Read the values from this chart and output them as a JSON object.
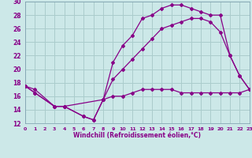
{
  "xlabel": "Windchill (Refroidissement éolien,°C)",
  "background_color": "#cce8e8",
  "grid_color": "#aacccc",
  "line_color": "#880088",
  "spine_color": "#7799aa",
  "xlim": [
    0,
    23
  ],
  "ylim": [
    12,
    30
  ],
  "yticks": [
    12,
    14,
    16,
    18,
    20,
    22,
    24,
    26,
    28,
    30
  ],
  "xticks": [
    0,
    1,
    2,
    3,
    4,
    5,
    6,
    7,
    8,
    9,
    10,
    11,
    12,
    13,
    14,
    15,
    16,
    17,
    18,
    19,
    20,
    21,
    22,
    23
  ],
  "series1_x": [
    0,
    1,
    3,
    4,
    6,
    7,
    8,
    9,
    10,
    11,
    12,
    13,
    14,
    15,
    16,
    17,
    18,
    19,
    20,
    21,
    22,
    23
  ],
  "series1_y": [
    17.5,
    17.0,
    14.5,
    14.5,
    13.0,
    12.5,
    15.5,
    21.0,
    23.5,
    25.0,
    27.5,
    28.0,
    29.0,
    29.5,
    29.5,
    29.0,
    28.5,
    28.0,
    28.0,
    22.0,
    19.0,
    17.0
  ],
  "series2_x": [
    0,
    1,
    3,
    4,
    6,
    7,
    8,
    9,
    10,
    11,
    12,
    13,
    14,
    15,
    16,
    17,
    18,
    19,
    20,
    21,
    22,
    23
  ],
  "series2_y": [
    17.5,
    16.5,
    14.5,
    14.5,
    13.0,
    12.5,
    15.5,
    16.0,
    16.0,
    16.5,
    17.0,
    17.0,
    17.0,
    17.0,
    16.5,
    16.5,
    16.5,
    16.5,
    16.5,
    16.5,
    16.5,
    17.0
  ],
  "series3_x": [
    0,
    1,
    3,
    4,
    8,
    9,
    10,
    11,
    12,
    13,
    14,
    15,
    16,
    17,
    18,
    19,
    20,
    21,
    22,
    23
  ],
  "series3_y": [
    17.5,
    16.5,
    14.5,
    14.5,
    15.5,
    18.5,
    20.0,
    21.5,
    23.0,
    24.5,
    26.0,
    26.5,
    27.0,
    27.5,
    27.5,
    27.0,
    25.5,
    22.0,
    19.0,
    17.0
  ]
}
